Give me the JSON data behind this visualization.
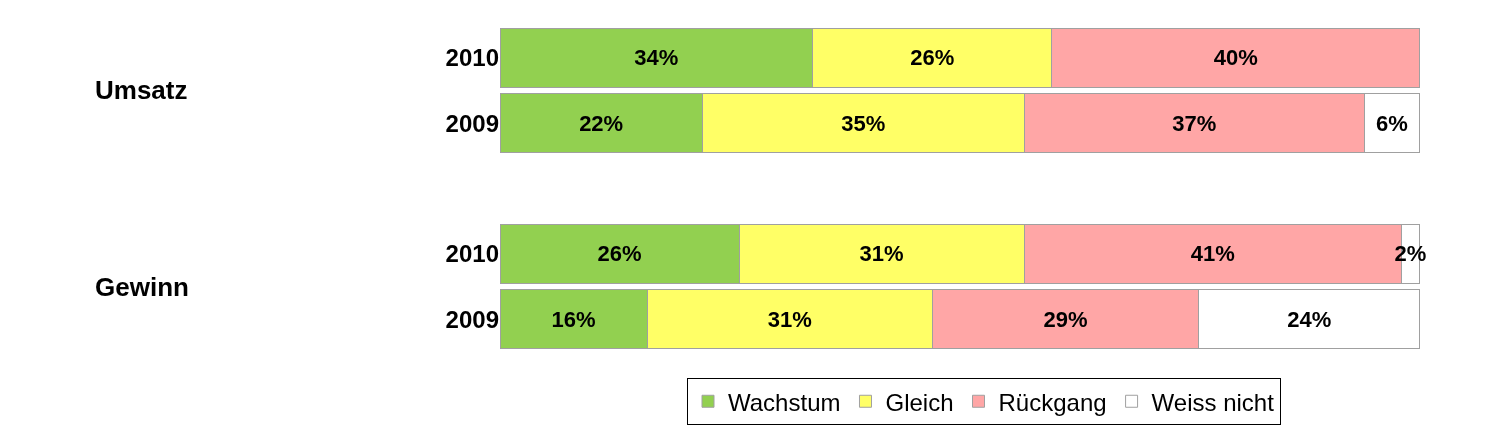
{
  "chart_data": {
    "type": "bar",
    "orientation": "horizontal",
    "stacked": true,
    "legend": "bottom",
    "categories": [
      "2010",
      "2009",
      null,
      "2010",
      "2009"
    ],
    "series": [
      {
        "name": "Wachstum",
        "color": "#92d050",
        "values": [
          34,
          22,
          null,
          26,
          16
        ],
        "value_labels": [
          "34%",
          "22%",
          null,
          "26%",
          "16%"
        ]
      },
      {
        "name": "Gleich",
        "color": "#ffff66",
        "values": [
          26,
          35,
          null,
          31,
          31
        ],
        "value_labels": [
          "26%",
          "35%",
          null,
          "31%",
          "31%"
        ]
      },
      {
        "name": "Rückgang",
        "color": "#ffa6a6",
        "values": [
          40,
          37,
          null,
          41,
          29
        ],
        "value_labels": [
          "40%",
          "37%",
          null,
          "41%",
          "29%"
        ]
      },
      {
        "name": "Weiss nicht",
        "color": "#ffffff",
        "values": [
          null,
          6,
          null,
          2,
          24
        ],
        "value_labels": [
          null,
          "6%",
          null,
          "2%",
          "24%"
        ]
      }
    ],
    "annotations": [
      "Umsatz",
      "Gewinn"
    ]
  }
}
